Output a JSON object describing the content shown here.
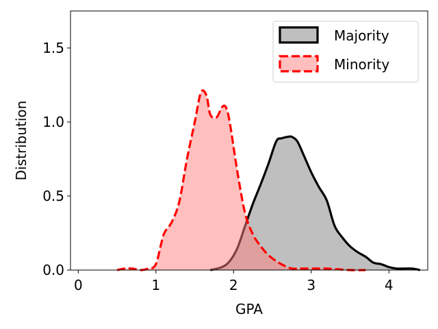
{
  "chart_data": {
    "type": "area",
    "title": "",
    "xlabel": "GPA",
    "ylabel": "Distribution",
    "xlim": [
      -0.1,
      4.5
    ],
    "ylim": [
      0,
      1.75
    ],
    "xticks": [
      0,
      1,
      2,
      3,
      4
    ],
    "yticks": [
      0.0,
      0.5,
      1.0,
      1.5
    ],
    "xtick_labels": [
      "0",
      "1",
      "2",
      "3",
      "4"
    ],
    "ytick_labels": [
      "0.0",
      "0.5",
      "1.0",
      "1.5"
    ],
    "legend_position": "top-right",
    "series": [
      {
        "name": "Majority",
        "line_color": "#000000",
        "fill_color": "#808080",
        "line_style": "solid",
        "x": [
          1.7,
          1.85,
          1.95,
          2.05,
          2.15,
          2.25,
          2.35,
          2.45,
          2.55,
          2.62,
          2.7,
          2.75,
          2.82,
          2.9,
          3.0,
          3.1,
          3.2,
          3.3,
          3.4,
          3.5,
          3.6,
          3.7,
          3.8,
          3.9,
          4.0,
          4.1,
          4.2,
          4.3,
          4.4
        ],
        "y": [
          0.0,
          0.02,
          0.06,
          0.15,
          0.3,
          0.45,
          0.58,
          0.72,
          0.87,
          0.89,
          0.9,
          0.9,
          0.87,
          0.78,
          0.66,
          0.56,
          0.47,
          0.3,
          0.22,
          0.16,
          0.12,
          0.09,
          0.05,
          0.04,
          0.02,
          0.01,
          0.01,
          0.01,
          0.0
        ]
      },
      {
        "name": "Minority",
        "line_color": "#ff0000",
        "fill_color": "#ff8080",
        "line_style": "dashed",
        "x": [
          0.5,
          0.6,
          0.7,
          0.8,
          0.9,
          1.0,
          1.1,
          1.2,
          1.3,
          1.4,
          1.5,
          1.58,
          1.65,
          1.7,
          1.78,
          1.85,
          1.9,
          1.95,
          2.05,
          2.15,
          2.25,
          2.35,
          2.45,
          2.55,
          2.65,
          2.75,
          2.85,
          3.0,
          3.2,
          3.5,
          3.7
        ],
        "y": [
          0.0,
          0.01,
          0.01,
          0.0,
          0.01,
          0.04,
          0.24,
          0.32,
          0.46,
          0.75,
          1.0,
          1.2,
          1.18,
          1.05,
          1.03,
          1.1,
          1.1,
          1.0,
          0.66,
          0.38,
          0.24,
          0.16,
          0.1,
          0.06,
          0.03,
          0.01,
          0.01,
          0.01,
          0.01,
          0.0,
          0.0
        ]
      }
    ]
  }
}
